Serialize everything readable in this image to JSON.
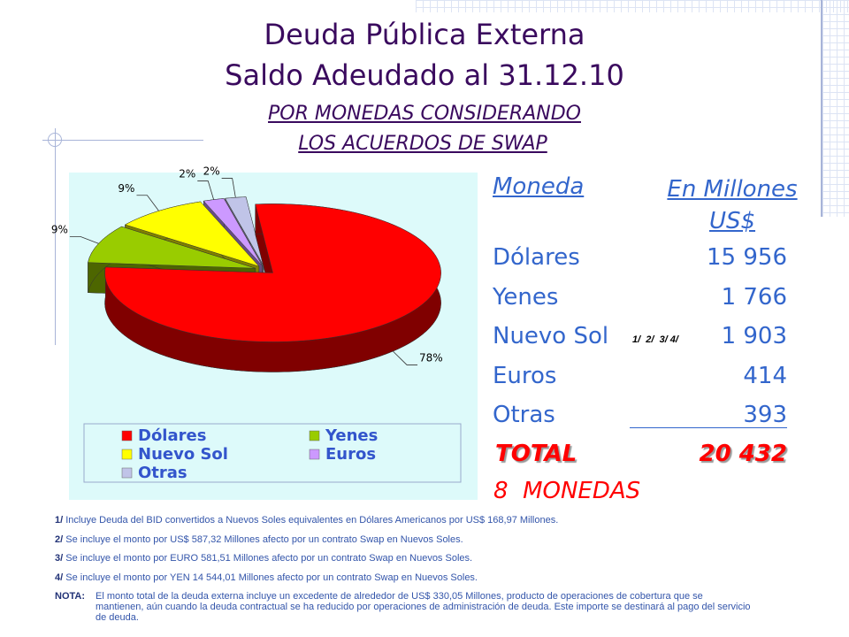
{
  "slide": {
    "title": [
      "Deuda Pública Externa",
      "Saldo Adeudado al 31.12.10"
    ],
    "subtitle": [
      "POR MONEDAS CONSIDERANDO",
      "LOS ACUERDOS DE SWAP"
    ]
  },
  "chart_data": {
    "type": "pie",
    "categories": [
      "Dólares",
      "Yenes",
      "Nuevo Sol",
      "Euros",
      "Otras"
    ],
    "values": [
      78,
      9,
      9,
      2,
      2
    ],
    "value_labels": [
      "78%",
      "9%",
      "9%",
      "2%",
      "2%"
    ],
    "colors": [
      "#ff0000",
      "#99cc00",
      "#ffff00",
      "#cc99ff",
      "#c0c4e8"
    ],
    "legend": "bottom"
  },
  "table": {
    "header": [
      "Moneda",
      "En Millones US$"
    ],
    "rows": [
      {
        "name": "Dólares",
        "amount": "15 956"
      },
      {
        "name": "Yenes",
        "amount": "1 766"
      },
      {
        "name": "Nuevo Sol",
        "amount": "1 903",
        "note": "1/  2/  3/ 4/"
      },
      {
        "name": "Euros",
        "amount": "414"
      },
      {
        "name": "Otras",
        "amount": "393"
      }
    ],
    "total": {
      "label": "TOTAL",
      "amount": "20 432"
    },
    "currencies": "8  MONEDAS"
  },
  "footnotes": [
    {
      "marker": "1/",
      "text": "Incluye Deuda del BID convertidos a Nuevos Soles equivalentes en Dólares Americanos por US$ 168,97 Millones."
    },
    {
      "marker": "2/",
      "text": "Se incluye el monto por US$ 587,32 Millones afecto por un contrato Swap en Nuevos Soles."
    },
    {
      "marker": "3/",
      "text": "Se incluye el monto por EURO 581,51 Millones afecto por un contrato Swap en Nuevos Soles."
    },
    {
      "marker": "4/",
      "text": "Se incluye el monto por YEN 14 544,01 Millones afecto por un contrato Swap en Nuevos Soles."
    }
  ],
  "note": {
    "marker": "NOTA:",
    "text": "El monto total de la deuda externa incluye un excedente de alrededor de US$ 330,05 Millones, producto de operaciones de cobertura que se mantienen, aún cuando la deuda contractual se ha reducido por operaciones de administración de deuda. Este importe se destinará al pago del servicio de deuda."
  }
}
